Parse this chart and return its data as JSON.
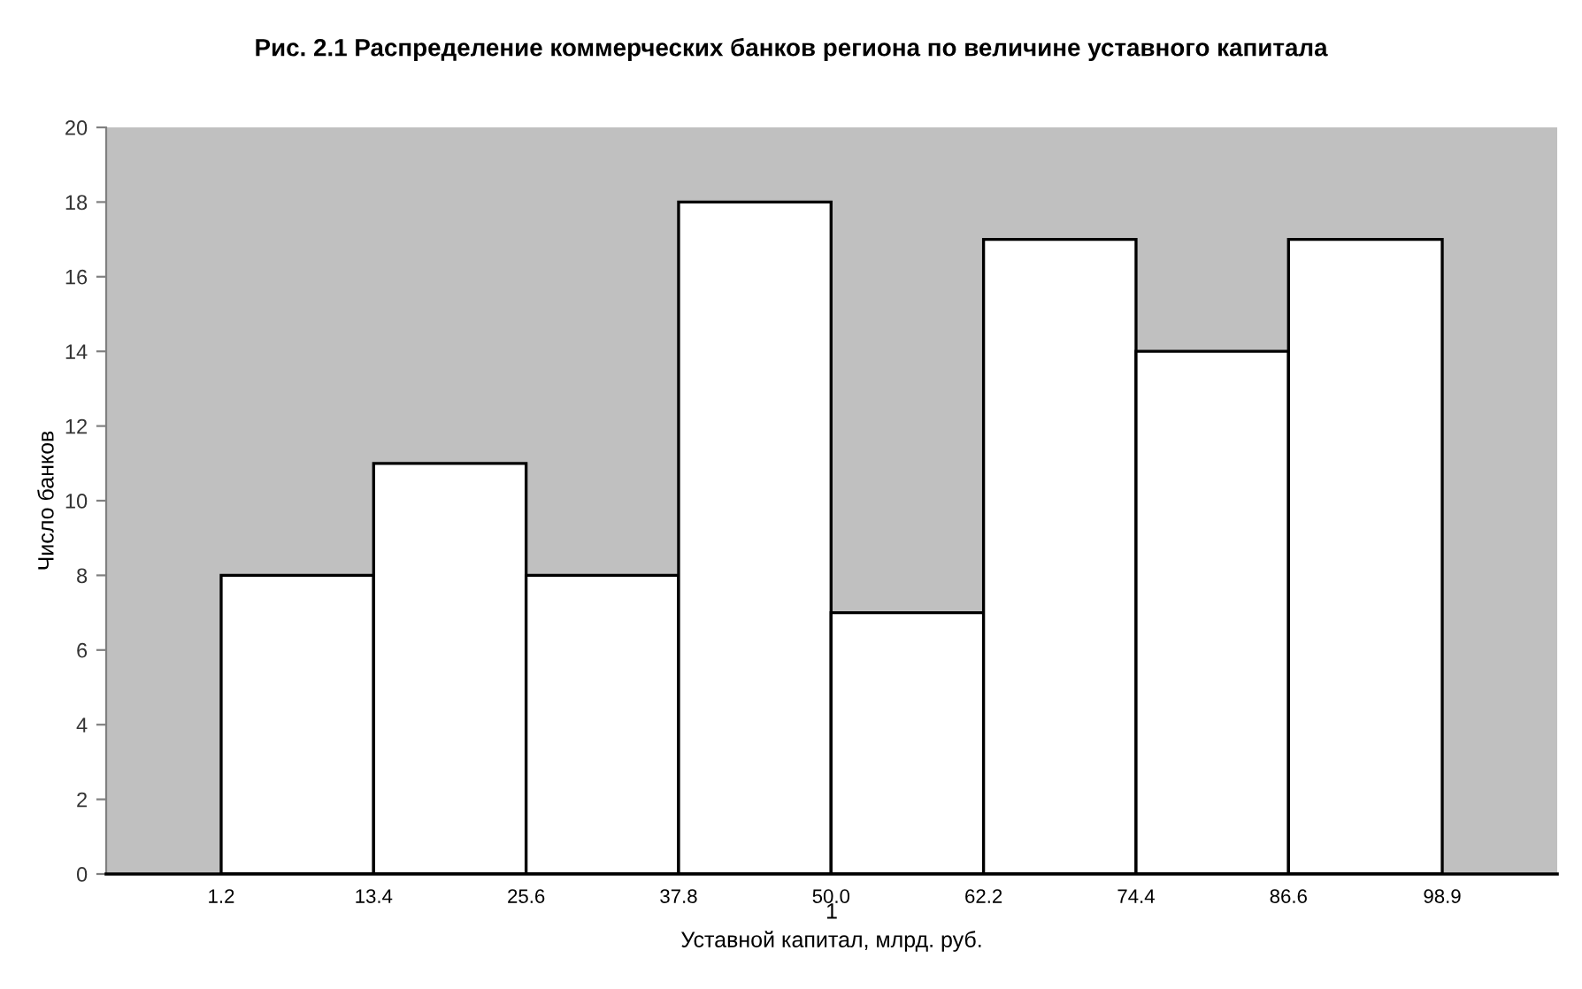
{
  "chart_data": {
    "type": "histogram",
    "title": "Рис. 2.1 Распределение коммерческих банков региона по величине уставного капитала",
    "xlabel": "Уставной капитал, млрд. руб.",
    "ylabel": "Число банков",
    "bins": [
      1.2,
      13.4,
      25.6,
      37.8,
      50.0,
      62.2,
      74.4,
      86.6,
      98.9
    ],
    "values": [
      8,
      11,
      8,
      18,
      7,
      17,
      14,
      17
    ],
    "color": "#ffffff",
    "xlim": [
      -8.0,
      108.1
    ],
    "xticks": [
      1.2,
      13.4,
      25.6,
      37.8,
      {
        "value": 50.0,
        "label": "50.0"
      },
      62.2,
      74.4,
      86.6,
      98.9
    ],
    "ylim": [
      0,
      20
    ],
    "yticks": [
      0,
      2,
      4,
      6,
      8,
      10,
      12,
      14,
      16,
      18,
      20
    ],
    "annotations": [
      "1"
    ],
    "grid": false,
    "legend": false
  }
}
